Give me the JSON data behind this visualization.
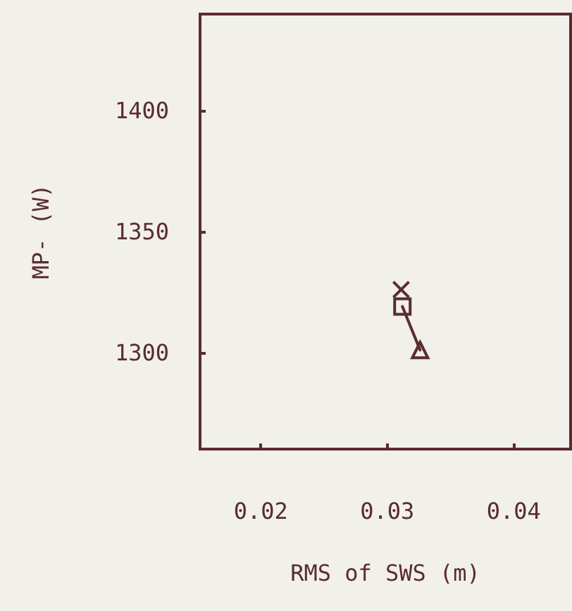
{
  "chart_data": {
    "type": "scatter",
    "xlabel": "RMS of SWS (m)",
    "ylabel": "MP- (W)",
    "xlim": [
      0.0152,
      0.0445
    ],
    "xticks": [
      0.02,
      0.03,
      0.04
    ],
    "ylim": [
      1260,
      1440
    ],
    "yticks": [
      1300,
      1350,
      1400
    ],
    "grid": false,
    "series": [
      {
        "type": "line",
        "color": "#5a2c2e",
        "x": [
          0.0312,
          0.0326
        ],
        "values": [
          1319,
          1301
        ],
        "marker": "none",
        "line_style": "solid"
      },
      {
        "color": "#5a2c2e",
        "x": [
          0.0311
        ],
        "values": [
          1326
        ],
        "marker": "cross"
      },
      {
        "color": "#5a2c2e",
        "x": [
          0.0312
        ],
        "values": [
          1319
        ],
        "marker": "square"
      },
      {
        "color": "#5a2c2e",
        "x": [
          0.0326
        ],
        "values": [
          1301
        ],
        "marker": "triangle"
      }
    ]
  }
}
